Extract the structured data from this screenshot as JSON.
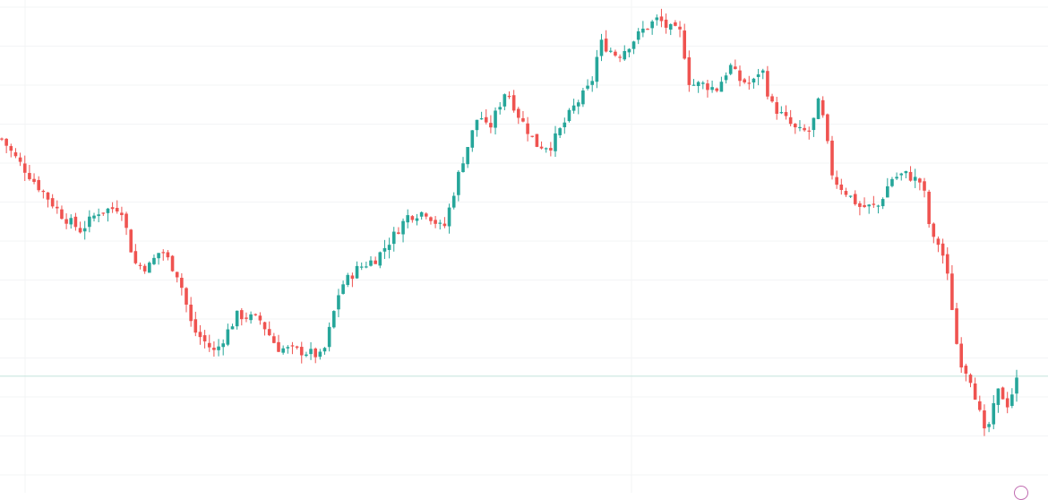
{
  "chart_data": {
    "type": "candlestick",
    "title": "",
    "xlabel": "",
    "ylabel": "",
    "ylim": [
      0,
      100
    ],
    "grid": true,
    "current_price": 21.0,
    "up_color": "#26a69a",
    "down_color": "#ef5350",
    "anchors": [
      [
        0,
        72
      ],
      [
        15,
        68
      ],
      [
        40,
        62
      ],
      [
        70,
        55
      ],
      [
        90,
        52
      ],
      [
        110,
        56
      ],
      [
        135,
        57
      ],
      [
        150,
        45
      ],
      [
        165,
        44
      ],
      [
        180,
        48
      ],
      [
        200,
        42
      ],
      [
        215,
        31
      ],
      [
        240,
        26
      ],
      [
        265,
        34
      ],
      [
        290,
        33
      ],
      [
        310,
        27
      ],
      [
        345,
        26
      ],
      [
        360,
        25
      ],
      [
        380,
        40
      ],
      [
        400,
        44
      ],
      [
        420,
        46
      ],
      [
        440,
        51
      ],
      [
        455,
        55
      ],
      [
        475,
        56
      ],
      [
        495,
        52
      ],
      [
        515,
        66
      ],
      [
        535,
        77
      ],
      [
        545,
        73
      ],
      [
        565,
        82
      ],
      [
        580,
        76
      ],
      [
        600,
        70
      ],
      [
        615,
        70
      ],
      [
        640,
        78
      ],
      [
        660,
        83
      ],
      [
        670,
        92
      ],
      [
        690,
        89
      ],
      [
        705,
        92
      ],
      [
        720,
        95
      ],
      [
        735,
        97
      ],
      [
        745,
        95
      ],
      [
        760,
        94
      ],
      [
        770,
        83
      ],
      [
        785,
        83
      ],
      [
        800,
        82
      ],
      [
        815,
        87
      ],
      [
        825,
        84
      ],
      [
        840,
        83
      ],
      [
        850,
        87
      ],
      [
        860,
        79
      ],
      [
        875,
        76
      ],
      [
        890,
        73
      ],
      [
        905,
        73
      ],
      [
        915,
        80
      ],
      [
        930,
        63
      ],
      [
        945,
        60
      ],
      [
        960,
        57
      ],
      [
        980,
        57
      ],
      [
        995,
        63
      ],
      [
        1010,
        64
      ],
      [
        1030,
        62
      ],
      [
        1040,
        50
      ],
      [
        1050,
        49
      ],
      [
        1060,
        40
      ],
      [
        1070,
        25
      ],
      [
        1085,
        20
      ],
      [
        1100,
        8
      ],
      [
        1115,
        18
      ],
      [
        1125,
        15
      ],
      [
        1135,
        20
      ]
    ]
  },
  "icons": {
    "corner": "circle-badge-icon"
  }
}
